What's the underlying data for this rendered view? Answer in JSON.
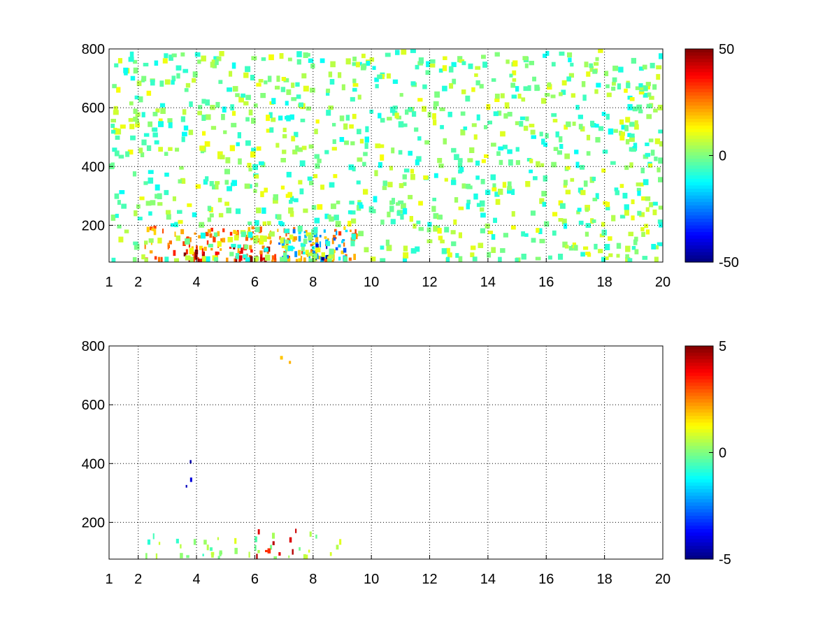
{
  "chart_data": [
    {
      "type": "heatmap",
      "title": "",
      "xlabel": "",
      "ylabel": "",
      "xlim": [
        1,
        20
      ],
      "ylim": [
        75,
        800
      ],
      "x_ticks": [
        1,
        2,
        4,
        6,
        8,
        10,
        12,
        14,
        16,
        18,
        20
      ],
      "x_tick_labels": [
        "1",
        "2",
        "4",
        "6",
        "8",
        "10",
        "12",
        "14",
        "16",
        "18",
        "20"
      ],
      "y_ticks": [
        200,
        400,
        600,
        800
      ],
      "y_tick_labels": [
        "200",
        "400",
        "600",
        "800"
      ],
      "grid": true,
      "colormap": "jet",
      "colorbar": {
        "clim": [
          -50,
          50
        ],
        "ticks": [
          50,
          0,
          -50
        ],
        "tick_labels": [
          "50",
          "0",
          "-50"
        ]
      },
      "dominant_features": [
        {
          "x_range": [
            2.2,
            9.5
          ],
          "y_range": [
            75,
            200
          ],
          "approx_value": 25,
          "note": "warm band near bottom (yellow/red)"
        },
        {
          "x_range": [
            3.5,
            6.5
          ],
          "y_range": [
            75,
            130
          ],
          "approx_value": 45,
          "note": "strongest positive (dark red)"
        },
        {
          "x_range": [
            6.8,
            9.2
          ],
          "y_range": [
            90,
            190
          ],
          "approx_value": -20,
          "note": "negative region (cyan/blue)"
        },
        {
          "x_range": [
            7.8,
            8.5
          ],
          "y_range": [
            90,
            140
          ],
          "approx_value": -45,
          "note": "strongest negative (dark blue)"
        },
        {
          "x_range": [
            1,
            20
          ],
          "y_range": [
            75,
            800
          ],
          "approx_value": 0,
          "note": "sparse scattered near-zero pixels (green/cyan/yellow)"
        }
      ]
    },
    {
      "type": "heatmap",
      "title": "",
      "xlabel": "",
      "ylabel": "",
      "xlim": [
        1,
        20
      ],
      "ylim": [
        75,
        800
      ],
      "x_ticks": [
        1,
        2,
        4,
        6,
        8,
        10,
        12,
        14,
        16,
        18,
        20
      ],
      "x_tick_labels": [
        "1",
        "2",
        "4",
        "6",
        "8",
        "10",
        "12",
        "14",
        "16",
        "18",
        "20"
      ],
      "y_ticks": [
        200,
        400,
        600,
        800
      ],
      "y_tick_labels": [
        "200",
        "400",
        "600",
        "800"
      ],
      "grid": true,
      "colormap": "jet",
      "colorbar": {
        "clim": [
          -5,
          5
        ],
        "ticks": [
          5,
          0,
          -5
        ],
        "tick_labels": [
          "5",
          "0",
          "-5"
        ]
      },
      "dominant_features": [
        {
          "x_range": [
            2.2,
            9.0
          ],
          "y_range": [
            75,
            170
          ],
          "approx_value": 0,
          "note": "near-zero band (green/cyan)"
        },
        {
          "x_range": [
            6.0,
            7.4
          ],
          "y_range": [
            80,
            180
          ],
          "approx_value": 4,
          "note": "positive patch (orange/red)"
        },
        {
          "x_range": [
            3.5,
            4.0
          ],
          "y_range": [
            320,
            420
          ],
          "approx_value": -4,
          "note": "sparse negative streaks (blue)"
        },
        {
          "x_range": [
            6.8,
            7.2
          ],
          "y_range": [
            690,
            780
          ],
          "approx_value": 1.5,
          "note": "isolated yellow pixels"
        }
      ]
    }
  ]
}
